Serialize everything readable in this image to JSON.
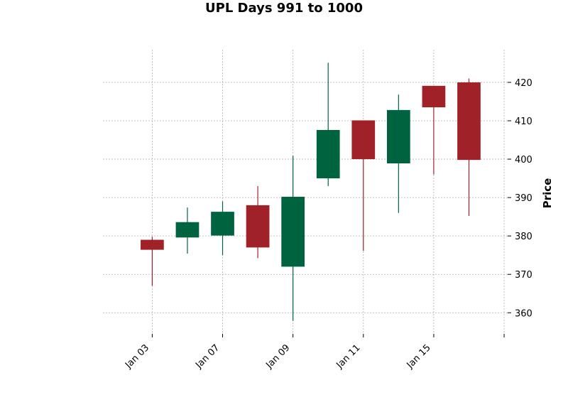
{
  "chart_data": {
    "type": "candlestick",
    "title": "UPL Days 991 to 1000",
    "ylabel": "Price",
    "ylim": [
      354.5,
      428.5
    ],
    "y_ticks": [
      360,
      370,
      380,
      390,
      400,
      410,
      420
    ],
    "x_ticks": [
      {
        "index": 0,
        "label": "Jan 03"
      },
      {
        "index": 2,
        "label": "Jan 07"
      },
      {
        "index": 4,
        "label": "Jan 09"
      },
      {
        "index": 6,
        "label": "Jan 11"
      },
      {
        "index": 8,
        "label": "Jan 15"
      },
      {
        "index": 10,
        "label": ""
      }
    ],
    "x_range": [
      -1.4,
      10.1
    ],
    "grid": true,
    "y_axis_side": "right",
    "up_color": "#006340",
    "down_color": "#a02128",
    "candles": [
      {
        "open": 379.0,
        "high": 379.8,
        "low": 367.0,
        "close": 376.4
      },
      {
        "open": 379.6,
        "high": 387.4,
        "low": 375.4,
        "close": 383.6
      },
      {
        "open": 380.1,
        "high": 389.0,
        "low": 375.0,
        "close": 386.3
      },
      {
        "open": 388.0,
        "high": 393.0,
        "low": 374.2,
        "close": 377.0
      },
      {
        "open": 372.0,
        "high": 400.9,
        "low": 357.9,
        "close": 390.2
      },
      {
        "open": 395.0,
        "high": 425.1,
        "low": 393.0,
        "close": 407.6
      },
      {
        "open": 410.1,
        "high": 410.1,
        "low": 376.1,
        "close": 400.0
      },
      {
        "open": 398.9,
        "high": 416.8,
        "low": 386.0,
        "close": 412.8
      },
      {
        "open": 419.1,
        "high": 419.1,
        "low": 396.0,
        "close": 413.5
      },
      {
        "open": 420.0,
        "high": 421.0,
        "low": 385.2,
        "close": 399.8
      }
    ]
  }
}
